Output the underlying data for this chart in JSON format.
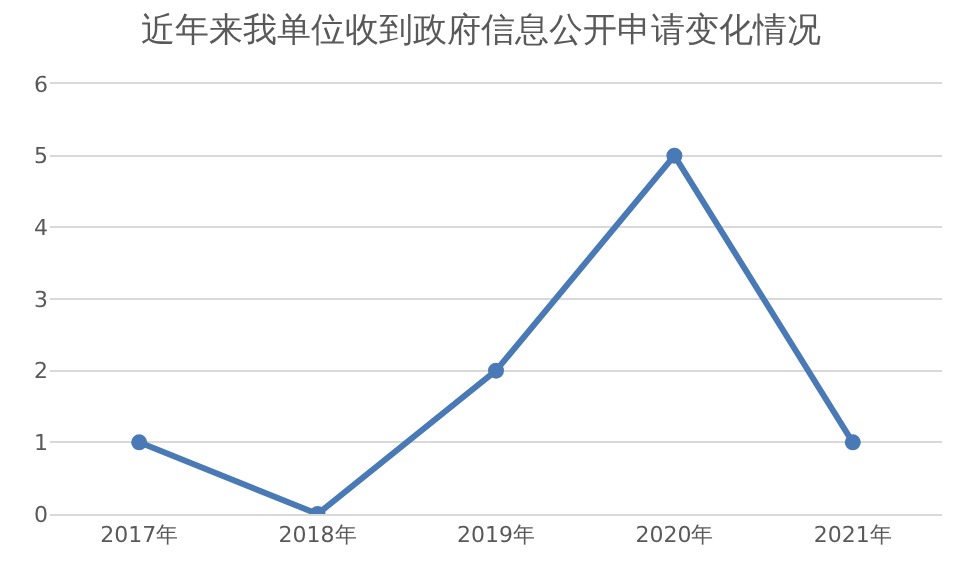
{
  "chart_data": {
    "type": "line",
    "title": "近年来我单位收到政府信息公开申请变化情况",
    "categories": [
      "2017年",
      "2018年",
      "2019年",
      "2020年",
      "2021年"
    ],
    "series": [
      {
        "color": "#4a7ab5",
        "values": [
          1,
          0,
          2,
          5,
          1
        ]
      }
    ],
    "ylim": [
      0,
      6
    ],
    "yticks": [
      0,
      1,
      2,
      3,
      4,
      5,
      6
    ],
    "grid": "y",
    "marker": "circle",
    "line_style": "solid"
  }
}
